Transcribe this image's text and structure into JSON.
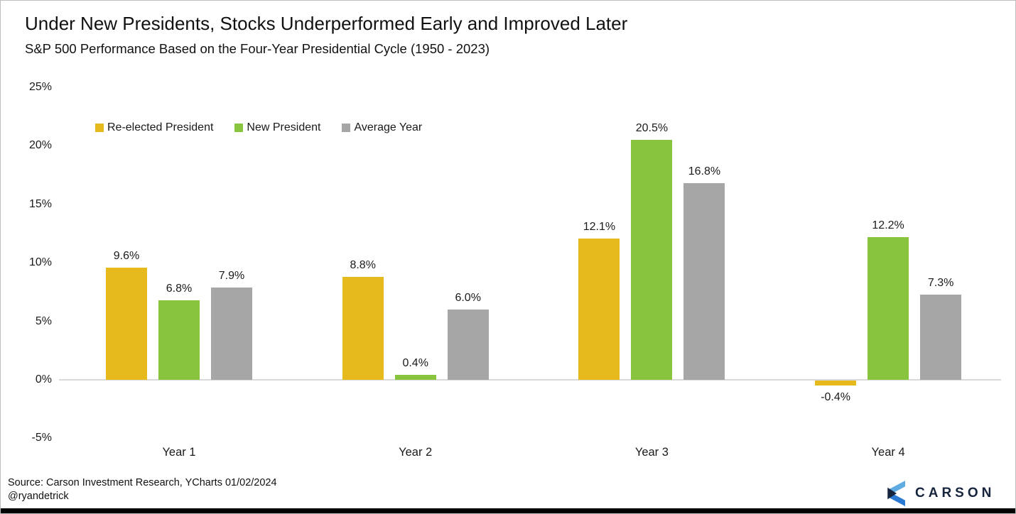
{
  "title": "Under New Presidents, Stocks Underperformed Early and Improved Later",
  "subtitle": "S&P 500 Performance Based on the Four-Year Presidential Cycle (1950 - 2023)",
  "source": {
    "line1": "Source: Carson Investment Research, YCharts 01/02/2024",
    "line2": "@ryandetrick"
  },
  "logo": {
    "text": "CARSON",
    "navy": "#16243c",
    "light_blue": "#5face3",
    "mid_blue": "#2a79d2"
  },
  "colors": {
    "gold": "#e6b91c",
    "green": "#88c43e",
    "gray": "#a6a6a6",
    "zero_line": "#d9d9d9",
    "text": "#1a1a1a"
  },
  "chart_data": {
    "type": "bar",
    "categories": [
      "Year 1",
      "Year 2",
      "Year 3",
      "Year 4"
    ],
    "series": [
      {
        "name": "Re-elected President",
        "color": "#e6b91c",
        "values": [
          9.6,
          8.8,
          12.1,
          -0.4
        ]
      },
      {
        "name": "New President",
        "color": "#88c43e",
        "values": [
          6.8,
          0.4,
          20.5,
          12.2
        ]
      },
      {
        "name": "Average Year",
        "color": "#a6a6a6",
        "values": [
          7.9,
          6.0,
          16.8,
          7.3
        ]
      }
    ],
    "value_label_format": "percent_one_decimal",
    "y_ticks": [
      25,
      20,
      15,
      10,
      5,
      0,
      -5
    ],
    "y_tick_labels": [
      "25%",
      "20%",
      "15%",
      "10%",
      "5%",
      "0%",
      "-5%"
    ],
    "ylim": [
      -5,
      25
    ],
    "grid": "zero-line-only",
    "legend_position": "top-left"
  }
}
